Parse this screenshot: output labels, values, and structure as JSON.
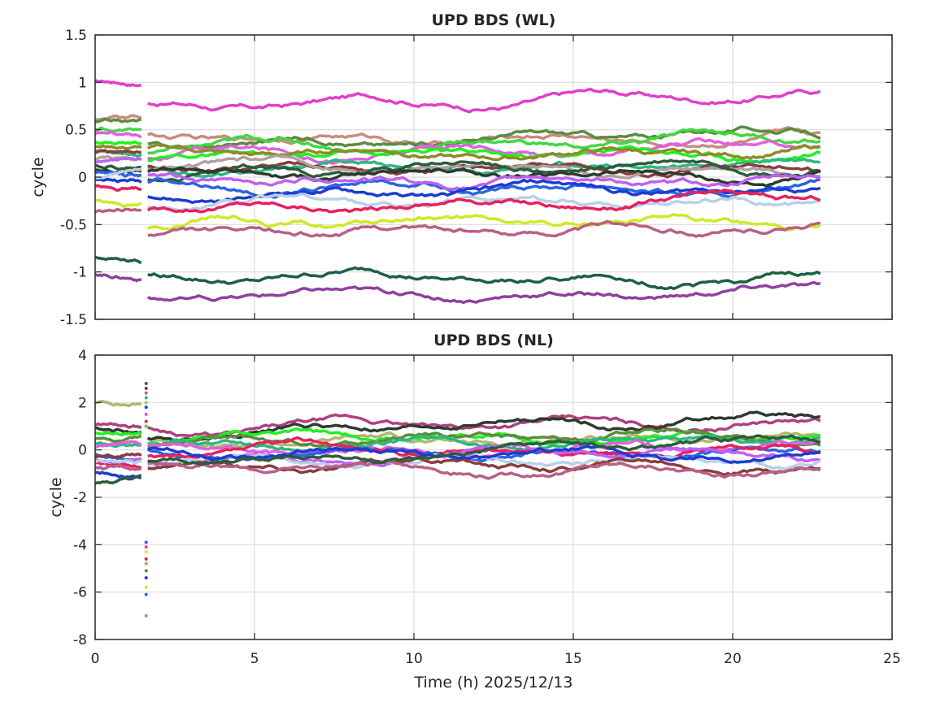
{
  "figure": {
    "xlabel": "Time (h) 2025/12/13"
  },
  "chart_data": [
    {
      "type": "line",
      "title": "UPD BDS (WL)",
      "xlabel": "",
      "ylabel": "cycle",
      "xlim": [
        0,
        25
      ],
      "ylim": [
        -1.5,
        1.5
      ],
      "grid": true,
      "xticks": [
        0,
        5,
        10,
        15,
        20,
        25
      ],
      "yticks": [
        -1.5,
        -1,
        -0.5,
        0,
        0.5,
        1,
        1.5
      ],
      "ytick_labels": [
        "-1.5",
        "-1",
        "-0.5",
        "0",
        "0.5",
        "1",
        "1.5"
      ],
      "series": [
        {
          "color": "#e040c8",
          "pre": 1.0,
          "start": 0.75,
          "end": 0.88
        },
        {
          "color": "#c88c80",
          "pre": 0.62,
          "start": 0.42,
          "end": 0.4
        },
        {
          "color": "#5c8c3c",
          "pre": 0.58,
          "start": 0.35,
          "end": 0.49
        },
        {
          "color": "#40d840",
          "pre": 0.5,
          "start": 0.3,
          "end": 0.42
        },
        {
          "color": "#e060e0",
          "pre": 0.45,
          "start": 0.22,
          "end": 0.34
        },
        {
          "color": "#20f020",
          "pre": 0.38,
          "start": 0.18,
          "end": 0.28
        },
        {
          "color": "#8c8c28",
          "pre": 0.32,
          "start": 0.26,
          "end": 0.25
        },
        {
          "color": "#2cb880",
          "pre": 0.28,
          "start": 0.08,
          "end": 0.16
        },
        {
          "color": "#8c3c3c",
          "pre": 0.25,
          "start": 0.12,
          "end": 0.05
        },
        {
          "color": "#b0a0a0",
          "pre": 0.18,
          "start": 0.1,
          "end": 0.1
        },
        {
          "color": "#2c5c3c",
          "pre": 0.12,
          "start": 0.02,
          "end": 0.12
        },
        {
          "color": "#2c3c2c",
          "pre": 0.08,
          "start": 0.05,
          "end": 0.0
        },
        {
          "color": "#2c64e0",
          "pre": 0.04,
          "start": -0.08,
          "end": -0.12
        },
        {
          "color": "#c060f0",
          "pre": 0.15,
          "start": -0.02,
          "end": -0.05
        },
        {
          "color": "#1c3cd0",
          "pre": -0.02,
          "start": -0.2,
          "end": -0.14
        },
        {
          "color": "#b8d0e8",
          "pre": 0.0,
          "start": -0.28,
          "end": -0.25
        },
        {
          "color": "#e82060",
          "pre": -0.1,
          "start": -0.32,
          "end": -0.22
        },
        {
          "color": "#d0e828",
          "pre": -0.25,
          "start": -0.52,
          "end": -0.47
        },
        {
          "color": "#b86088",
          "pre": -0.38,
          "start": -0.65,
          "end": -0.49
        },
        {
          "color": "#1c6044",
          "pre": -0.84,
          "start": -1.06,
          "end": -1.09
        },
        {
          "color": "#9040a0",
          "pre": -1.02,
          "start": -1.29,
          "end": -1.18
        }
      ]
    },
    {
      "type": "scatter",
      "title": "UPD BDS (NL)",
      "xlabel": "Time (h) 2025/12/13",
      "ylabel": "cycle",
      "xlim": [
        0,
        25
      ],
      "ylim": [
        -8,
        4
      ],
      "grid": true,
      "xticks": [
        0,
        5,
        10,
        15,
        20,
        25
      ],
      "xtick_labels": [
        "0",
        "5",
        "10",
        "15",
        "20",
        "25"
      ],
      "yticks": [
        -8,
        -6,
        -4,
        -2,
        0,
        2,
        4
      ],
      "ytick_labels": [
        "-8",
        "-6",
        "-4",
        "-2",
        "0",
        "2",
        "4"
      ],
      "series": [
        {
          "color": "#b0b870",
          "pre": 2.0,
          "start": 0.3,
          "end": 0.5
        },
        {
          "color": "#b04080",
          "pre": 1.1,
          "start": 0.8,
          "end": 1.1
        },
        {
          "color": "#2c3c2c",
          "pre": 0.9,
          "start": 0.6,
          "end": 1.45
        },
        {
          "color": "#20f020",
          "pre": 0.7,
          "start": 0.4,
          "end": 0.8
        },
        {
          "color": "#5c8c3c",
          "pre": 0.5,
          "start": 0.3,
          "end": 0.6
        },
        {
          "color": "#2cb880",
          "pre": 0.3,
          "start": 0.2,
          "end": 0.3
        },
        {
          "color": "#e060e0",
          "pre": 0.1,
          "start": 0.0,
          "end": 0.2
        },
        {
          "color": "#2c64e0",
          "pre": -0.2,
          "start": -0.1,
          "end": 0.0
        },
        {
          "color": "#e82060",
          "pre": -0.6,
          "start": -0.3,
          "end": 0.1
        },
        {
          "color": "#c060f0",
          "pre": -0.4,
          "start": -0.4,
          "end": -0.2
        },
        {
          "color": "#b8d0e8",
          "pre": -0.5,
          "start": -0.6,
          "end": -0.4
        },
        {
          "color": "#8c3c3c",
          "pre": -0.3,
          "start": -0.7,
          "end": -0.6
        },
        {
          "color": "#b86088",
          "pre": -0.8,
          "start": -0.6,
          "end": -0.8
        },
        {
          "color": "#1c3cd0",
          "pre": -0.9,
          "start": -0.2,
          "end": -0.3
        },
        {
          "color": "#2c5c3c",
          "pre": -1.4,
          "start": -0.5,
          "end": 0.2
        }
      ],
      "jump_points": {
        "x": 1.6,
        "y": [
          2.8,
          2.6,
          2.4,
          2.2,
          2.0,
          1.8,
          1.5,
          1.2,
          1.0,
          -3.9,
          -4.1,
          -4.3,
          -4.6,
          -4.8,
          -5.1,
          -5.4,
          -5.8,
          -6.1,
          -7.0
        ],
        "colors": [
          "#8c3c3c",
          "#2c5c3c",
          "#b86088",
          "#2cb880",
          "#b0b870",
          "#1c3cd0",
          "#c060f0",
          "#e82060",
          "#40d840",
          "#2c64e0",
          "#e040c8",
          "#d0e828",
          "#e82060",
          "#c88c80",
          "#5c8c3c",
          "#1c3cd0",
          "#d0e828",
          "#2c64e0",
          "#c88c80"
        ]
      }
    }
  ]
}
